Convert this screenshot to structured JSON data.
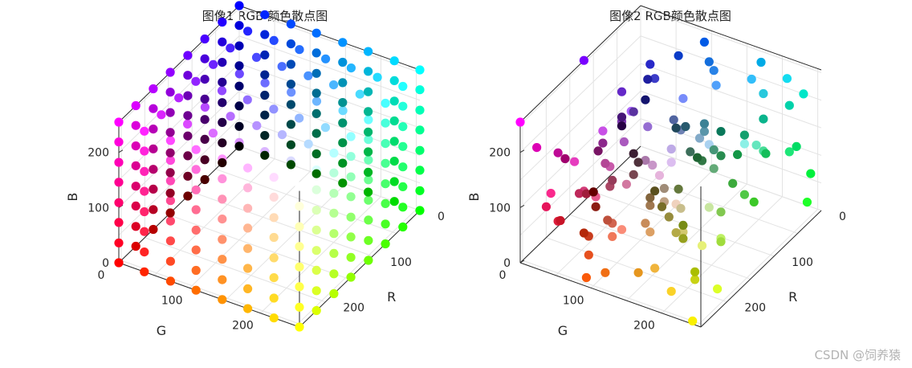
{
  "watermark": "CSDN @饲养猿",
  "colors": {
    "grid": "#e3e3e3",
    "axis": "#262626",
    "background": "#ffffff"
  },
  "chart_data": [
    {
      "type": "scatter",
      "title": "图像1 RGB 颜色散点图",
      "xlabel": "R",
      "ylabel": "G",
      "zlabel": "B",
      "xlim": [
        0,
        255
      ],
      "ylim": [
        0,
        255
      ],
      "zlim": [
        0,
        255
      ],
      "r_ticks": [
        "0",
        "100",
        "200"
      ],
      "g_ticks": [
        "0",
        "100",
        "200"
      ],
      "b_ticks": [
        "0",
        "100",
        "200"
      ],
      "grid": true,
      "points_note": "uniform RGB lattice, levels 0..255 step 255/7 per channel",
      "levels": [
        0,
        36,
        73,
        109,
        146,
        182,
        219,
        255
      ]
    },
    {
      "type": "scatter",
      "title": "图像2 RGB颜色散点图",
      "xlabel": "R",
      "ylabel": "G",
      "zlabel": "B",
      "xlim": [
        0,
        255
      ],
      "ylim": [
        0,
        255
      ],
      "zlim": [
        0,
        255
      ],
      "r_ticks": [
        "0",
        "100",
        "200"
      ],
      "g_ticks": [
        "0",
        "100",
        "200"
      ],
      "b_ticks": [
        "0",
        "100",
        "200"
      ],
      "grid": true,
      "points": [
        [
          255,
          0,
          255
        ],
        [
          230,
          20,
          90
        ],
        [
          220,
          30,
          60
        ],
        [
          200,
          20,
          40
        ],
        [
          190,
          40,
          90
        ],
        [
          160,
          30,
          60
        ],
        [
          210,
          60,
          120
        ],
        [
          180,
          70,
          150
        ],
        [
          200,
          90,
          170
        ],
        [
          140,
          40,
          140
        ],
        [
          130,
          60,
          180
        ],
        [
          120,
          0,
          255
        ],
        [
          100,
          40,
          200
        ],
        [
          90,
          50,
          160
        ],
        [
          70,
          20,
          120
        ],
        [
          60,
          60,
          200
        ],
        [
          40,
          40,
          200
        ],
        [
          30,
          30,
          160
        ],
        [
          20,
          20,
          110
        ],
        [
          10,
          60,
          200
        ],
        [
          0,
          90,
          230
        ],
        [
          20,
          110,
          220
        ],
        [
          40,
          130,
          230
        ],
        [
          0,
          170,
          230
        ],
        [
          40,
          200,
          220
        ],
        [
          0,
          230,
          200
        ],
        [
          0,
          210,
          170
        ],
        [
          10,
          180,
          140
        ],
        [
          20,
          160,
          110
        ],
        [
          40,
          140,
          80
        ],
        [
          60,
          170,
          60
        ],
        [
          80,
          200,
          70
        ],
        [
          0,
          220,
          100
        ],
        [
          0,
          240,
          60
        ],
        [
          30,
          255,
          40
        ],
        [
          60,
          200,
          40
        ],
        [
          20,
          190,
          90
        ],
        [
          30,
          230,
          120
        ],
        [
          70,
          220,
          150
        ],
        [
          100,
          230,
          190
        ],
        [
          140,
          240,
          230
        ],
        [
          170,
          210,
          240
        ],
        [
          190,
          170,
          230
        ],
        [
          220,
          190,
          240
        ],
        [
          230,
          180,
          220
        ],
        [
          200,
          150,
          200
        ],
        [
          170,
          120,
          170
        ],
        [
          160,
          140,
          120
        ],
        [
          190,
          160,
          130
        ],
        [
          200,
          190,
          140
        ],
        [
          210,
          200,
          110
        ],
        [
          180,
          170,
          70
        ],
        [
          150,
          140,
          60
        ],
        [
          120,
          110,
          40
        ],
        [
          90,
          80,
          30
        ],
        [
          130,
          100,
          60
        ],
        [
          160,
          120,
          80
        ],
        [
          200,
          140,
          90
        ],
        [
          220,
          160,
          100
        ],
        [
          240,
          180,
          60
        ],
        [
          230,
          150,
          30
        ],
        [
          240,
          110,
          20
        ],
        [
          250,
          90,
          10
        ],
        [
          230,
          80,
          30
        ],
        [
          200,
          60,
          30
        ],
        [
          180,
          40,
          10
        ],
        [
          140,
          30,
          20
        ],
        [
          100,
          0,
          0
        ],
        [
          210,
          120,
          160
        ],
        [
          230,
          90,
          140
        ],
        [
          250,
          210,
          40
        ],
        [
          250,
          240,
          0
        ],
        [
          200,
          210,
          20
        ],
        [
          170,
          190,
          0
        ],
        [
          150,
          160,
          30
        ],
        [
          120,
          140,
          20
        ],
        [
          100,
          120,
          60
        ],
        [
          60,
          110,
          90
        ],
        [
          40,
          90,
          110
        ],
        [
          30,
          70,
          90
        ],
        [
          60,
          130,
          150
        ],
        [
          90,
          150,
          170
        ],
        [
          130,
          170,
          200
        ],
        [
          110,
          130,
          180
        ],
        [
          80,
          100,
          160
        ],
        [
          150,
          110,
          210
        ],
        [
          170,
          90,
          190
        ],
        [
          100,
          170,
          120
        ],
        [
          70,
          150,
          120
        ],
        [
          50,
          120,
          70
        ],
        [
          30,
          100,
          50
        ],
        [
          20,
          150,
          70
        ],
        [
          10,
          120,
          90
        ],
        [
          130,
          200,
          80
        ],
        [
          160,
          220,
          60
        ],
        [
          190,
          240,
          100
        ],
        [
          220,
          255,
          40
        ],
        [
          230,
          240,
          120
        ],
        [
          200,
          230,
          160
        ],
        [
          240,
          210,
          190
        ],
        [
          250,
          140,
          120
        ],
        [
          240,
          120,
          90
        ],
        [
          210,
          100,
          80
        ],
        [
          190,
          80,
          60
        ],
        [
          170,
          70,
          100
        ],
        [
          150,
          60,
          90
        ],
        [
          120,
          70,
          80
        ],
        [
          80,
          50,
          60
        ],
        [
          60,
          30,
          50
        ],
        [
          40,
          0,
          70
        ],
        [
          120,
          20,
          100
        ],
        [
          160,
          0,
          110
        ],
        [
          190,
          10,
          150
        ],
        [
          220,
          0,
          180
        ],
        [
          250,
          40,
          140
        ],
        [
          230,
          60,
          190
        ],
        [
          200,
          80,
          230
        ],
        [
          170,
          100,
          250
        ],
        [
          120,
          140,
          250
        ],
        [
          80,
          160,
          250
        ],
        [
          50,
          190,
          250
        ],
        [
          20,
          220,
          240
        ]
      ]
    }
  ]
}
